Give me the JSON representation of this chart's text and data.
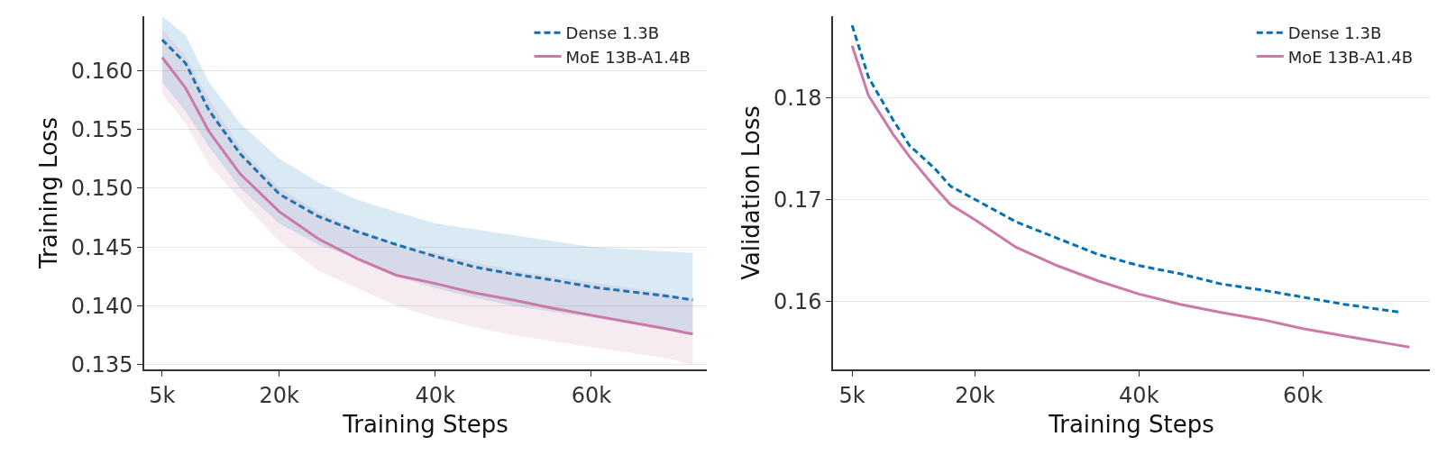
{
  "chart_data": [
    {
      "type": "line",
      "xlabel": "Training Steps",
      "ylabel": "Training Loss",
      "legend": "top right",
      "grid": "y",
      "xlim": [
        2700,
        74800
      ],
      "xticks": [
        {
          "value": 5000,
          "label": "5k"
        },
        {
          "value": 20000,
          "label": "20k"
        },
        {
          "value": 40000,
          "label": "40k"
        },
        {
          "value": 60000,
          "label": "60k"
        }
      ],
      "ylim": [
        0.1346,
        0.1646
      ],
      "yticks": [
        {
          "value": 0.135,
          "label": "0.135"
        },
        {
          "value": 0.14,
          "label": "0.140"
        },
        {
          "value": 0.145,
          "label": "0.145"
        },
        {
          "value": 0.15,
          "label": "0.150"
        },
        {
          "value": 0.155,
          "label": "0.155"
        },
        {
          "value": 0.16,
          "label": "0.160"
        }
      ],
      "x": [
        5000,
        8000,
        11000,
        15000,
        20000,
        25000,
        30000,
        35000,
        40000,
        45000,
        50000,
        55000,
        60000,
        65000,
        70000,
        73000
      ],
      "series": [
        {
          "name": "Dense 1.3B",
          "color": "#0072b2",
          "line_style": "dashed",
          "values": [
            0.1626,
            0.1606,
            0.1566,
            0.1529,
            0.1495,
            0.1476,
            0.1463,
            0.1452,
            0.1442,
            0.1433,
            0.1427,
            0.1422,
            0.1416,
            0.1412,
            0.1408,
            0.1405
          ],
          "lower": [
            0.159,
            0.1565,
            0.1535,
            0.15,
            0.147,
            0.1452,
            0.144,
            0.1425,
            0.1415,
            0.1407,
            0.14,
            0.1395,
            0.139,
            0.1385,
            0.138,
            0.1375
          ],
          "upper": [
            0.1646,
            0.163,
            0.159,
            0.1555,
            0.1525,
            0.1505,
            0.149,
            0.148,
            0.147,
            0.1465,
            0.146,
            0.1455,
            0.145,
            0.1448,
            0.1446,
            0.1445
          ]
        },
        {
          "name": "MoE 13B-A1.4B",
          "color": "#cc79a7",
          "line_style": "solid",
          "values": [
            0.1611,
            0.1585,
            0.1548,
            0.1512,
            0.148,
            0.1457,
            0.144,
            0.1426,
            0.1419,
            0.1411,
            0.1405,
            0.1398,
            0.1392,
            0.1386,
            0.138,
            0.1376
          ],
          "lower": [
            0.158,
            0.1555,
            0.152,
            0.149,
            0.1455,
            0.143,
            0.1415,
            0.14,
            0.139,
            0.1382,
            0.1375,
            0.137,
            0.1365,
            0.136,
            0.1355,
            0.135
          ],
          "upper": [
            0.1635,
            0.1612,
            0.1575,
            0.1535,
            0.15,
            0.148,
            0.1465,
            0.1452,
            0.1445,
            0.1437,
            0.143,
            0.1425,
            0.142,
            0.1415,
            0.141,
            0.1405
          ]
        }
      ]
    },
    {
      "type": "line",
      "xlabel": "Training Steps",
      "ylabel": "Validation Loss",
      "legend": "top right",
      "grid": "y",
      "xlim": [
        2670,
        75500
      ],
      "xticks": [
        {
          "value": 5000,
          "label": "5k"
        },
        {
          "value": 20000,
          "label": "20k"
        },
        {
          "value": 40000,
          "label": "40k"
        },
        {
          "value": 60000,
          "label": "60k"
        }
      ],
      "ylim": [
        0.1533,
        0.188
      ],
      "yticks": [
        0.16,
        0.17,
        0.18
      ],
      "series": [
        {
          "name": "Dense 1.3B",
          "color": "#0072b2",
          "line_style": "dashed",
          "x": [
            5000,
            7000,
            10000,
            12000,
            15000,
            17000,
            20000,
            25000,
            30000,
            35000,
            40000,
            45000,
            50000,
            55000,
            60000,
            65000,
            72000
          ],
          "values": [
            0.1871,
            0.182,
            0.1778,
            0.1753,
            0.1731,
            0.1713,
            0.17,
            0.1678,
            0.1662,
            0.1646,
            0.1635,
            0.1627,
            0.1617,
            0.1611,
            0.1604,
            0.1597,
            0.1589
          ]
        },
        {
          "name": "MoE 13B-A1.4B",
          "color": "#cc79a7",
          "line_style": "solid",
          "x": [
            5000,
            7000,
            10000,
            12000,
            15000,
            17000,
            20000,
            25000,
            30000,
            35000,
            40000,
            45000,
            50000,
            55000,
            60000,
            65000,
            70000,
            73000
          ],
          "values": [
            0.1851,
            0.1802,
            0.1764,
            0.1742,
            0.1713,
            0.1695,
            0.168,
            0.1653,
            0.1635,
            0.162,
            0.1607,
            0.1597,
            0.1589,
            0.1582,
            0.1573,
            0.1566,
            0.1559,
            0.1555
          ]
        }
      ]
    }
  ]
}
